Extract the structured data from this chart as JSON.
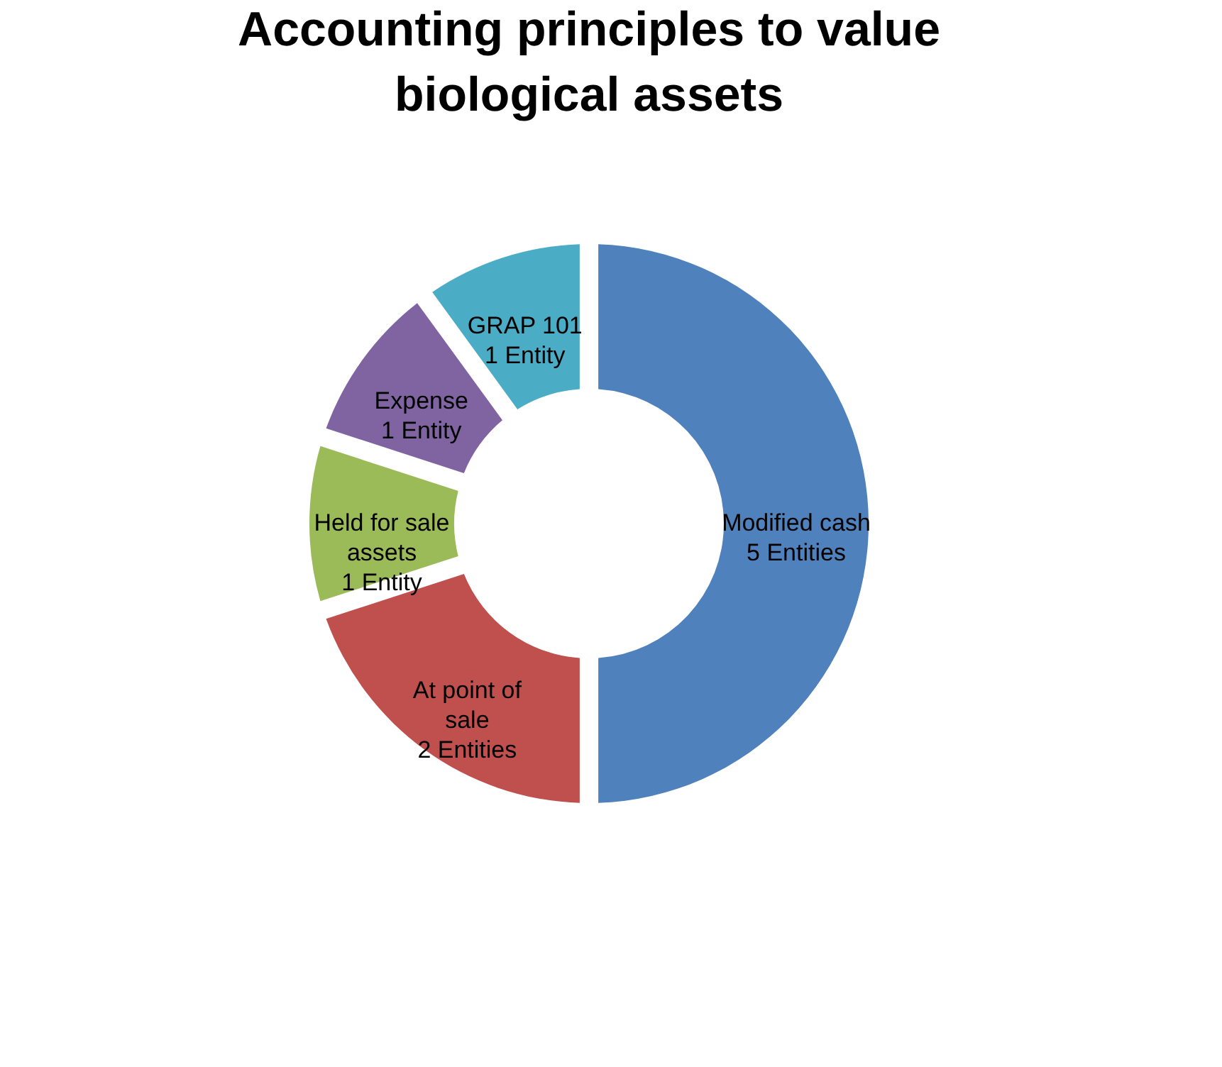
{
  "chart_data": {
    "type": "donut",
    "title": "Accounting principles to value biological assets",
    "categories": [
      "Modified cash",
      "At point of sale",
      "Held for sale assets",
      "Expense",
      "GRAP 101"
    ],
    "values": [
      5,
      2,
      1,
      1,
      1
    ],
    "value_labels": [
      "5 Entities",
      "2 Entities",
      "1 Entity",
      "1 Entity",
      "1 Entity"
    ],
    "colors": [
      "#4f81bd",
      "#c0504d",
      "#9bbb59",
      "#8064a2",
      "#4bacc6"
    ],
    "legend": false
  }
}
